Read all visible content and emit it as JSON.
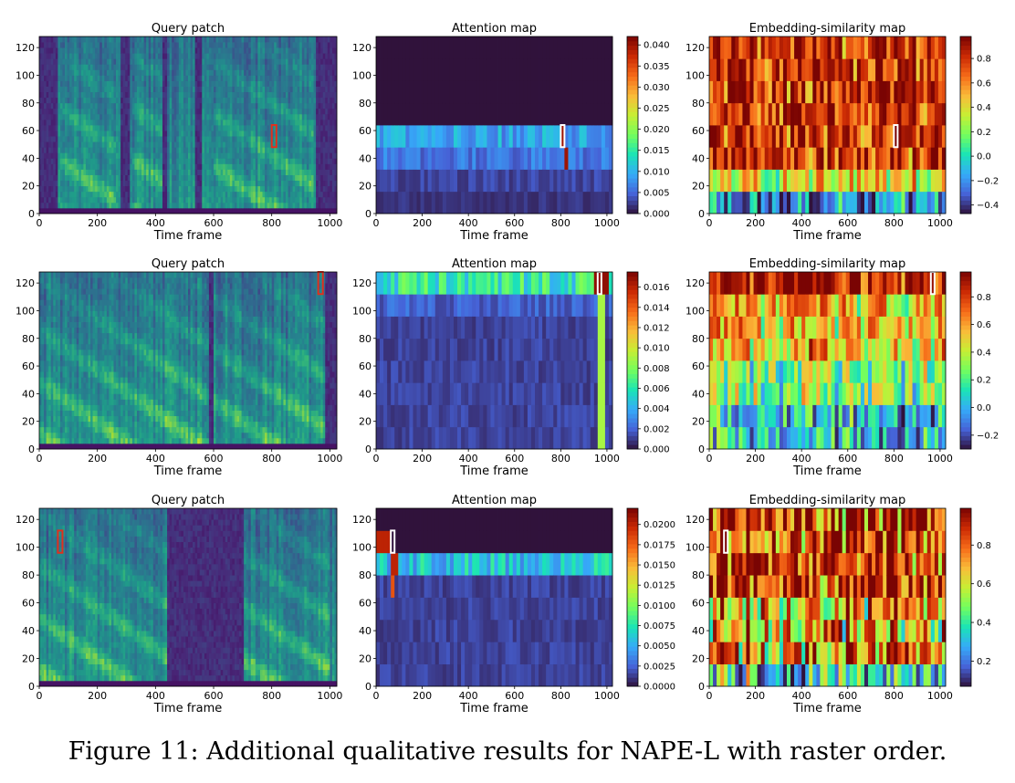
{
  "caption": "Figure 11: Additional qualitative results for NAPE-L with raster order.",
  "colormaps": {
    "viridis": [
      "#440154",
      "#482878",
      "#3e4a89",
      "#31688e",
      "#26828e",
      "#1f9e89",
      "#35b779",
      "#6ece58",
      "#b5de2b",
      "#fde725"
    ],
    "turbo": [
      "#30123b",
      "#4662d7",
      "#36aaf9",
      "#1ae4b6",
      "#72fe5e",
      "#c7ef34",
      "#fabb39",
      "#f66b19",
      "#cb2a04",
      "#7a0403"
    ],
    "query_box": "#e0301e",
    "highlight_box": "#ffffff"
  },
  "chart_data": [
    {
      "row": 1,
      "panel": "query",
      "type": "heatmap",
      "title": "Query patch",
      "xlabel": "Time frame",
      "ylabel": "",
      "xlim": [
        0,
        1024
      ],
      "ylim": [
        0,
        128
      ],
      "xticks": [
        0,
        200,
        400,
        600,
        800,
        1000
      ],
      "yticks": [
        0,
        20,
        40,
        60,
        80,
        100,
        120
      ],
      "colormap": "viridis",
      "query_box": {
        "x": [
          800,
          816
        ],
        "y": [
          48,
          64
        ]
      },
      "pattern": {
        "seed": 11,
        "dark_bands": [
          [
            0,
            60
          ],
          [
            280,
            310
          ],
          [
            420,
            440
          ],
          [
            530,
            560
          ],
          [
            950,
            1024
          ]
        ],
        "speech": [
          [
            70,
            260
          ],
          [
            320,
            420
          ],
          [
            600,
            940
          ]
        ]
      }
    },
    {
      "row": 1,
      "panel": "attention",
      "type": "heatmap",
      "title": "Attention map",
      "xlabel": "Time frame",
      "ylabel": "",
      "xlim": [
        0,
        1024
      ],
      "ylim": [
        0,
        128
      ],
      "xticks": [
        0,
        200,
        400,
        600,
        800,
        1000
      ],
      "yticks": [
        0,
        20,
        40,
        60,
        80,
        100,
        120
      ],
      "colormap": "turbo",
      "colorbar": {
        "min": 0.0,
        "max": 0.042,
        "ticks": [
          "0.000",
          "0.005",
          "0.010",
          "0.015",
          "0.020",
          "0.025",
          "0.030",
          "0.035",
          "0.040"
        ]
      },
      "highlight": {
        "x": [
          800,
          816
        ],
        "y": [
          48,
          64
        ]
      },
      "pattern": {
        "seed": 12,
        "bands": [
          [
            0,
            16,
            0.002
          ],
          [
            16,
            32,
            0.003
          ],
          [
            32,
            48,
            0.006
          ],
          [
            48,
            64,
            0.009
          ],
          [
            64,
            128,
            0.0
          ]
        ],
        "hot": [
          [
            790,
            816,
            48,
            64,
            0.04
          ],
          [
            816,
            830,
            32,
            48,
            0.04
          ]
        ]
      }
    },
    {
      "row": 1,
      "panel": "similarity",
      "type": "heatmap",
      "title": "Embedding-similarity map",
      "xlabel": "Time frame",
      "ylabel": "",
      "xlim": [
        0,
        1024
      ],
      "ylim": [
        0,
        128
      ],
      "xticks": [
        0,
        200,
        400,
        600,
        800,
        1000
      ],
      "yticks": [
        0,
        20,
        40,
        60,
        80,
        100,
        120
      ],
      "colormap": "turbo",
      "colorbar": {
        "min": -0.47,
        "max": 0.98,
        "ticks": [
          "−0.4",
          "−0.2",
          "0.0",
          "0.2",
          "0.4",
          "0.6",
          "0.8"
        ]
      },
      "highlight": {
        "x": [
          800,
          816
        ],
        "y": [
          48,
          64
        ]
      },
      "pattern": {
        "seed": 13,
        "bands": [
          [
            0,
            16,
            -0.2
          ],
          [
            16,
            32,
            0.35
          ],
          [
            32,
            128,
            0.8
          ]
        ]
      }
    },
    {
      "row": 2,
      "panel": "query",
      "type": "heatmap",
      "title": "Query patch",
      "xlabel": "Time frame",
      "ylabel": "",
      "xlim": [
        0,
        1024
      ],
      "ylim": [
        0,
        128
      ],
      "xticks": [
        0,
        200,
        400,
        600,
        800,
        1000
      ],
      "yticks": [
        0,
        20,
        40,
        60,
        80,
        100,
        120
      ],
      "colormap": "viridis",
      "query_box": {
        "x": [
          960,
          976
        ],
        "y": [
          112,
          128
        ]
      },
      "pattern": {
        "seed": 21,
        "dark_bands": [
          [
            580,
            600
          ],
          [
            980,
            1024
          ]
        ],
        "speech": [
          [
            0,
            1000
          ]
        ]
      }
    },
    {
      "row": 2,
      "panel": "attention",
      "type": "heatmap",
      "title": "Attention map",
      "xlabel": "Time frame",
      "ylabel": "",
      "xlim": [
        0,
        1024
      ],
      "ylim": [
        0,
        128
      ],
      "xticks": [
        0,
        200,
        400,
        600,
        800,
        1000
      ],
      "yticks": [
        0,
        20,
        40,
        60,
        80,
        100,
        120
      ],
      "colormap": "turbo",
      "colorbar": {
        "min": 0.0,
        "max": 0.0175,
        "ticks": [
          "0.000",
          "0.002",
          "0.004",
          "0.006",
          "0.008",
          "0.010",
          "0.012",
          "0.014",
          "0.016"
        ]
      },
      "highlight": {
        "x": [
          960,
          976
        ],
        "y": [
          112,
          128
        ]
      },
      "pattern": {
        "seed": 22,
        "bands": [
          [
            0,
            96,
            0.0012
          ],
          [
            96,
            112,
            0.002
          ],
          [
            112,
            128,
            0.006
          ]
        ],
        "hot": [
          [
            940,
            1000,
            112,
            128,
            0.017
          ],
          [
            960,
            990,
            0,
            112,
            0.009
          ]
        ]
      }
    },
    {
      "row": 2,
      "panel": "similarity",
      "type": "heatmap",
      "title": "Embedding-similarity map",
      "xlabel": "Time frame",
      "ylabel": "",
      "xlim": [
        0,
        1024
      ],
      "ylim": [
        0,
        128
      ],
      "xticks": [
        0,
        200,
        400,
        600,
        800,
        1000
      ],
      "yticks": [
        0,
        20,
        40,
        60,
        80,
        100,
        120
      ],
      "colormap": "turbo",
      "colorbar": {
        "min": -0.3,
        "max": 0.98,
        "ticks": [
          "−0.2",
          "0.0",
          "0.2",
          "0.4",
          "0.6",
          "0.8"
        ]
      },
      "highlight": {
        "x": [
          960,
          976
        ],
        "y": [
          112,
          128
        ]
      },
      "pattern": {
        "seed": 23,
        "bands": [
          [
            0,
            32,
            0.05
          ],
          [
            32,
            64,
            0.3
          ],
          [
            64,
            112,
            0.55
          ],
          [
            112,
            128,
            0.9
          ]
        ]
      }
    },
    {
      "row": 3,
      "panel": "query",
      "type": "heatmap",
      "title": "Query patch",
      "xlabel": "Time frame",
      "ylabel": "",
      "xlim": [
        0,
        1024
      ],
      "ylim": [
        0,
        128
      ],
      "xticks": [
        0,
        200,
        400,
        600,
        800,
        1000
      ],
      "yticks": [
        0,
        20,
        40,
        60,
        80,
        100,
        120
      ],
      "colormap": "viridis",
      "query_box": {
        "x": [
          64,
          80
        ],
        "y": [
          96,
          112
        ]
      },
      "pattern": {
        "seed": 31,
        "dark_bands": [
          [
            440,
            700
          ]
        ],
        "speech": [
          [
            0,
            440
          ],
          [
            700,
            1000
          ]
        ]
      }
    },
    {
      "row": 3,
      "panel": "attention",
      "type": "heatmap",
      "title": "Attention map",
      "xlabel": "Time frame",
      "ylabel": "",
      "xlim": [
        0,
        1024
      ],
      "ylim": [
        0,
        128
      ],
      "xticks": [
        0,
        200,
        400,
        600,
        800,
        1000
      ],
      "yticks": [
        0,
        20,
        40,
        60,
        80,
        100,
        120
      ],
      "colormap": "turbo",
      "colorbar": {
        "min": 0.0,
        "max": 0.022,
        "ticks": [
          "0.0000",
          "0.0025",
          "0.0050",
          "0.0075",
          "0.0100",
          "0.0125",
          "0.0150",
          "0.0175",
          "0.0200"
        ]
      },
      "highlight": {
        "x": [
          64,
          80
        ],
        "y": [
          96,
          112
        ]
      },
      "pattern": {
        "seed": 32,
        "bands": [
          [
            0,
            80,
            0.0015
          ],
          [
            80,
            96,
            0.006
          ],
          [
            96,
            128,
            0.0
          ]
        ],
        "hot": [
          [
            0,
            64,
            96,
            112,
            0.02
          ],
          [
            64,
            90,
            80,
            96,
            0.02
          ],
          [
            60,
            80,
            64,
            80,
            0.018
          ]
        ]
      }
    },
    {
      "row": 3,
      "panel": "similarity",
      "type": "heatmap",
      "title": "Embedding-similarity map",
      "xlabel": "Time frame",
      "ylabel": "",
      "xlim": [
        0,
        1024
      ],
      "ylim": [
        0,
        128
      ],
      "xticks": [
        0,
        200,
        400,
        600,
        800,
        1000
      ],
      "yticks": [
        0,
        20,
        40,
        60,
        80,
        100,
        120
      ],
      "colormap": "turbo",
      "colorbar": {
        "min": 0.07,
        "max": 0.99,
        "ticks": [
          "0.2",
          "0.4",
          "0.6",
          "0.8"
        ]
      },
      "highlight": {
        "x": [
          64,
          80
        ],
        "y": [
          96,
          112
        ]
      },
      "pattern": {
        "seed": 33,
        "bands": [
          [
            0,
            16,
            0.35
          ],
          [
            16,
            64,
            0.7
          ],
          [
            64,
            128,
            0.88
          ]
        ]
      }
    }
  ]
}
